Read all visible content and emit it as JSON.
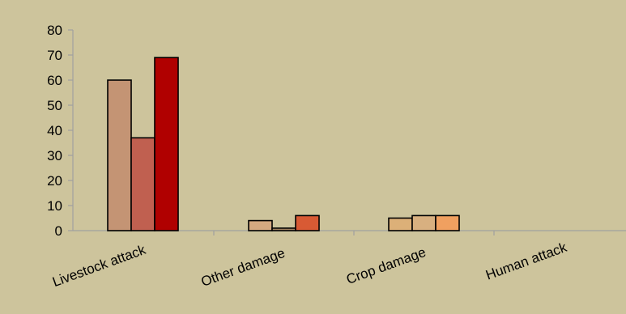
{
  "chart_data": {
    "type": "bar",
    "categories": [
      "Livestock attack",
      "Other damage",
      "Crop damage",
      "Human attack"
    ],
    "bars": [
      [
        {
          "value": 60,
          "color": "#c49474"
        },
        {
          "value": 37,
          "color": "#c06050"
        },
        {
          "value": 69,
          "color": "#b00000"
        }
      ],
      [
        {
          "value": 4,
          "color": "#d4a880"
        },
        {
          "value": 1,
          "color": "#a08060"
        },
        {
          "value": 6,
          "color": "#d85a34"
        }
      ],
      [
        {
          "value": 5,
          "color": "#dcb078"
        },
        {
          "value": 6,
          "color": "#d8b080"
        },
        {
          "value": 6,
          "color": "#f0a060"
        }
      ],
      []
    ],
    "yticks": [
      0,
      10,
      20,
      30,
      40,
      50,
      60,
      70,
      80
    ],
    "ylim": [
      0,
      80
    ],
    "title": "",
    "xlabel": "",
    "ylabel": "",
    "grid": false,
    "legend": "none"
  },
  "colors": {
    "background": "#cdc49c",
    "axis": "#a0a0a0"
  }
}
